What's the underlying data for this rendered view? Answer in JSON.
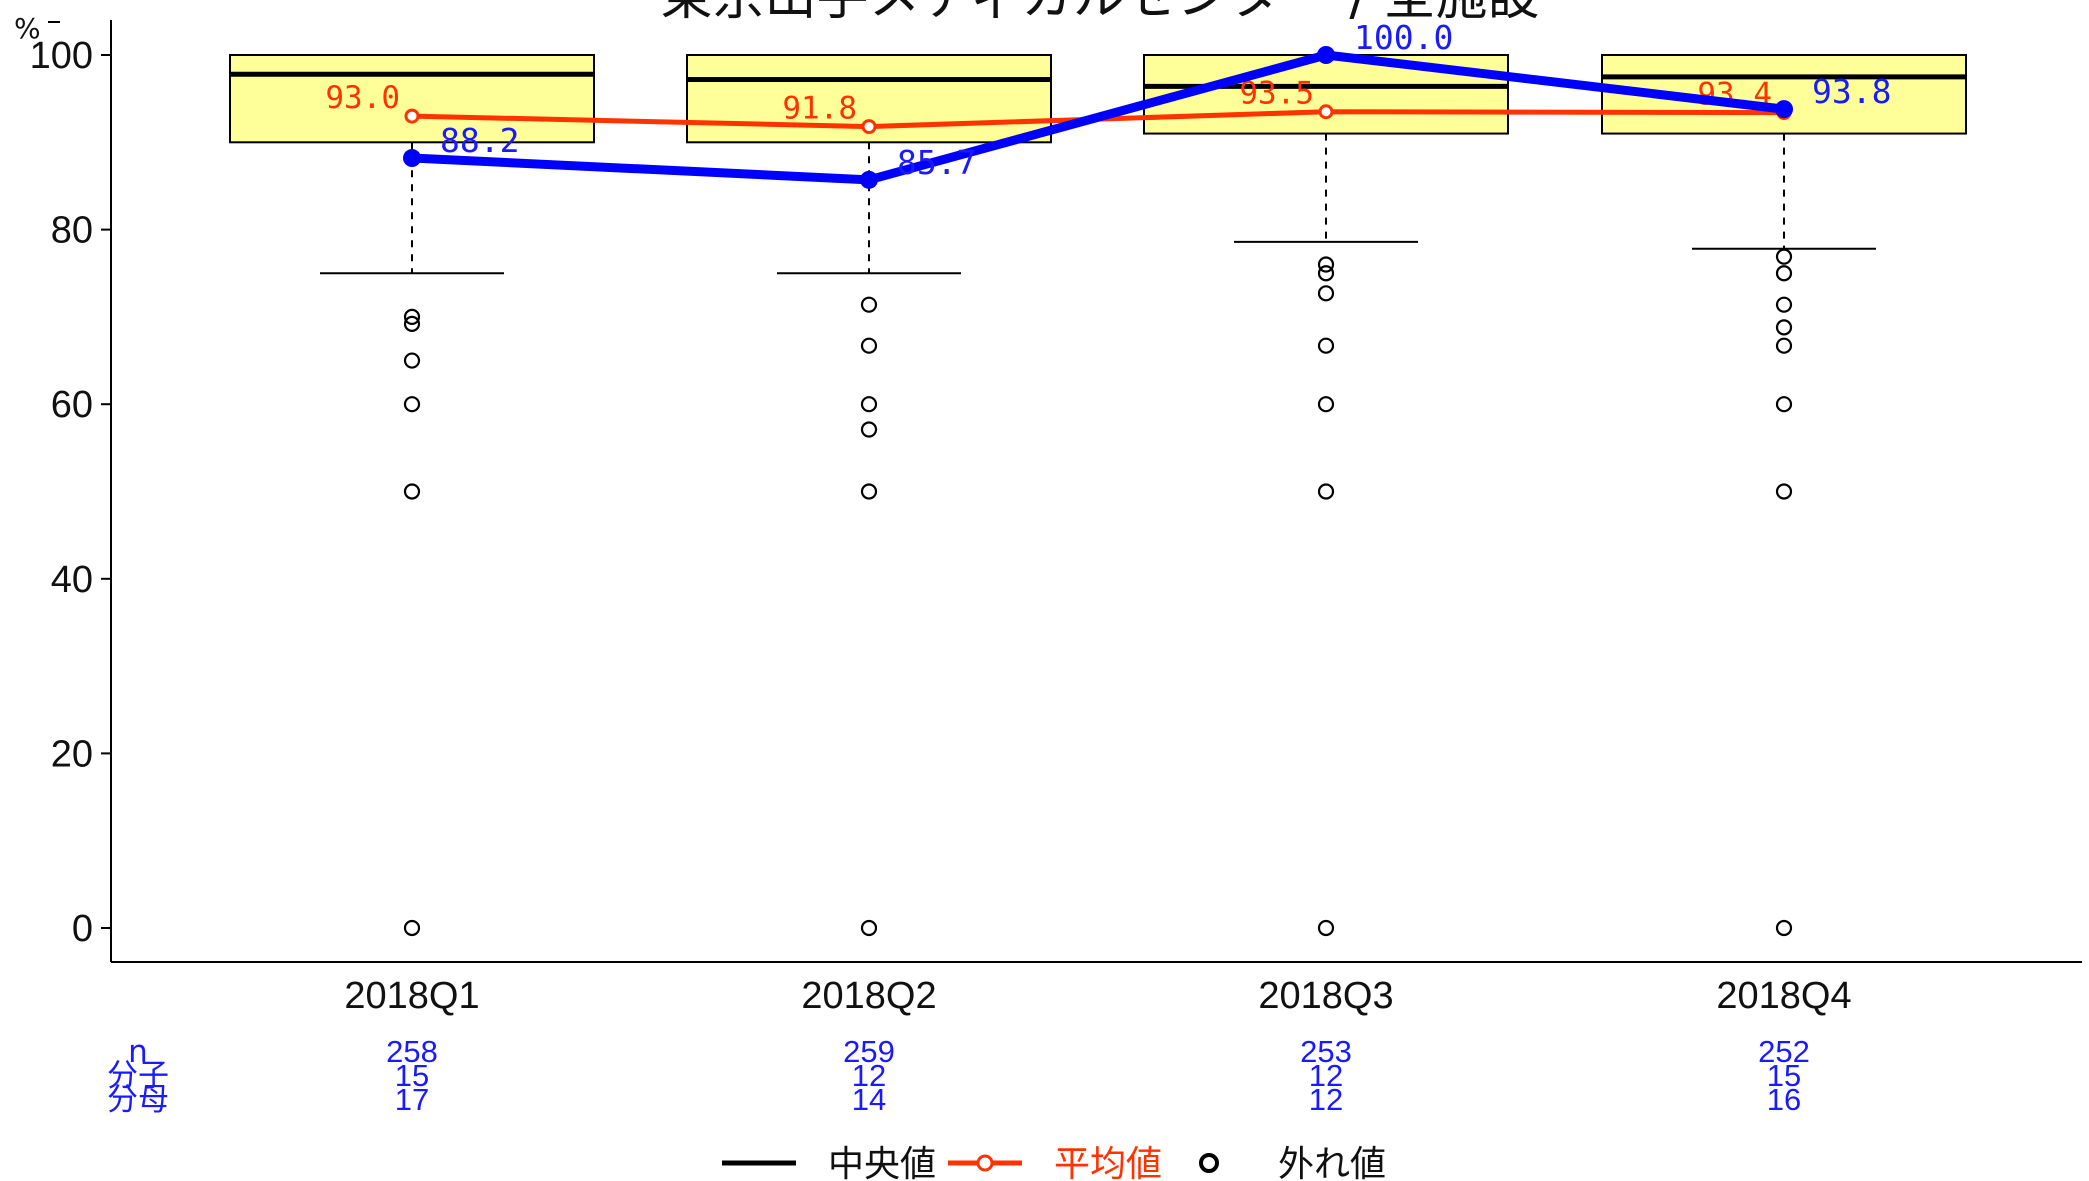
{
  "colors": {
    "box_fill": "#ffff99",
    "facility_line": "#0000ff",
    "mean_line": "#ff3300",
    "median_line": "#000000",
    "count_text": "#1a1aff",
    "axis": "#000000"
  },
  "chart_data": {
    "type": "box",
    "title": "東京山手メディカルセンター / 全施設",
    "y_unit": "%",
    "ylim": [
      0,
      100
    ],
    "y_ticks": [
      0,
      20,
      40,
      60,
      80,
      100
    ],
    "grid": false,
    "categories": [
      "2018Q1",
      "2018Q2",
      "2018Q3",
      "2018Q4"
    ],
    "boxes": [
      {
        "q1": 90.0,
        "median": 97.8,
        "q3": 100.0,
        "whisker_low": 75.0,
        "whisker_high": 100.0,
        "outliers": [
          70.0,
          69.2,
          65.0,
          60.0,
          50.0,
          0.0
        ]
      },
      {
        "q1": 90.0,
        "median": 97.2,
        "q3": 100.0,
        "whisker_low": 75.0,
        "whisker_high": 100.0,
        "outliers": [
          71.4,
          66.7,
          60.0,
          57.1,
          50.0,
          0.0
        ]
      },
      {
        "q1": 91.0,
        "median": 96.4,
        "q3": 100.0,
        "whisker_low": 78.6,
        "whisker_high": 100.0,
        "outliers": [
          76.0,
          75.0,
          72.7,
          66.7,
          60.0,
          50.0,
          0.0
        ]
      },
      {
        "q1": 91.0,
        "median": 97.5,
        "q3": 100.0,
        "whisker_low": 77.8,
        "whisker_high": 100.0,
        "outliers": [
          76.9,
          75.0,
          71.4,
          68.8,
          66.7,
          60.0,
          50.0,
          0.0
        ]
      }
    ],
    "mean_series": {
      "values": [
        93.0,
        91.8,
        93.5,
        93.4
      ],
      "labels": [
        "93.0",
        "91.8",
        "93.5",
        "93.4"
      ]
    },
    "facility_series": {
      "values": [
        88.2,
        85.7,
        100.0,
        93.8
      ],
      "labels": [
        "88.2",
        "85.7",
        "100.0",
        "93.8"
      ]
    },
    "count_table": {
      "row_labels": [
        "n",
        "分子",
        "分母"
      ],
      "rows": [
        [
          "258",
          "259",
          "253",
          "252"
        ],
        [
          "15",
          "12",
          "12",
          "15"
        ],
        [
          "17",
          "14",
          "12",
          "16"
        ]
      ]
    },
    "legend": {
      "position": "bottom",
      "items": [
        {
          "label": "中央値",
          "kind": "median"
        },
        {
          "label": "平均値",
          "kind": "mean"
        },
        {
          "label": "外れ値",
          "kind": "outlier"
        }
      ]
    }
  }
}
